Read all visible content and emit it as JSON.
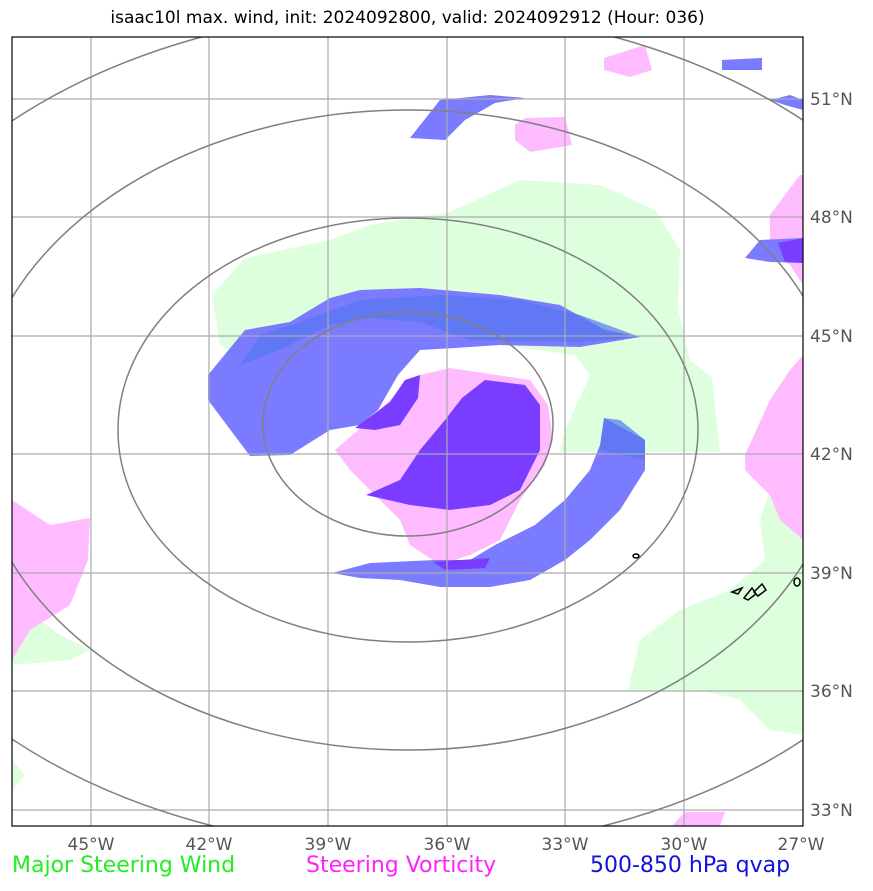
{
  "title": "isaac10l max. wind, init: 2024092800, valid: 2024092912 (Hour: 036)",
  "lon_labels": [
    "45°W",
    "42°W",
    "39°W",
    "36°W",
    "33°W",
    "30°W",
    "27°W"
  ],
  "lat_labels": [
    "51°N",
    "48°N",
    "45°N",
    "42°N",
    "39°N",
    "36°N",
    "33°N"
  ],
  "legend": {
    "wind": "Major Steering Wind",
    "vorticity": "Steering Vorticity",
    "qvap": "500-850 hPa qvap"
  },
  "colors": {
    "wind_fill": "#ddffdd",
    "vorticity_fill": "#ffbbff",
    "qvap_light": "#7b7bff",
    "qvap_dark": "#7a3cff",
    "contour": "#808080",
    "grid": "#aaaaaa"
  }
}
